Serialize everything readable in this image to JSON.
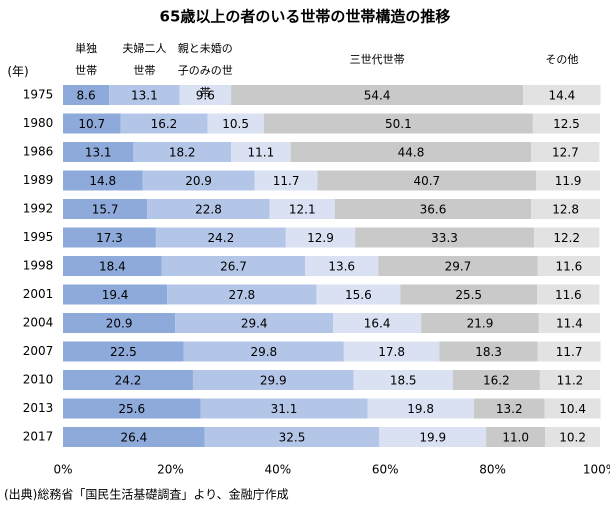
{
  "chart_data": {
    "type": "stacked-bar",
    "title": "65歳以上の者のいる世帯の世帯構造の推移",
    "y_label": "(年)",
    "source": "(出典)総務省「国民生活基礎調査」より、金融庁作成",
    "categories": [
      "1975",
      "1980",
      "1986",
      "1989",
      "1992",
      "1995",
      "1998",
      "2001",
      "2004",
      "2007",
      "2010",
      "2013",
      "2017"
    ],
    "series": [
      {
        "name": "単独世帯",
        "color": "#8eaadb",
        "values": [
          8.6,
          10.7,
          13.1,
          14.8,
          15.7,
          17.3,
          18.4,
          19.4,
          20.9,
          22.5,
          24.2,
          25.6,
          26.4
        ]
      },
      {
        "name": "夫婦二人世帯",
        "color": "#b4c6e7",
        "values": [
          13.1,
          16.2,
          18.2,
          20.9,
          22.8,
          24.2,
          26.7,
          27.8,
          29.4,
          29.8,
          29.9,
          31.1,
          32.5
        ]
      },
      {
        "name": "親と未婚の子のみの世帯",
        "color": "#d9e1f2",
        "values": [
          9.6,
          10.5,
          11.1,
          11.7,
          12.1,
          12.9,
          13.6,
          15.6,
          16.4,
          17.8,
          18.5,
          19.8,
          19.9
        ]
      },
      {
        "name": "三世代世帯",
        "color": "#c9c9c9",
        "values": [
          54.4,
          50.1,
          44.8,
          40.7,
          36.6,
          33.3,
          29.7,
          25.5,
          21.9,
          18.3,
          16.2,
          13.2,
          11.0
        ],
        "value_labels": [
          "54.4",
          "50.1",
          "44.8",
          "40.7",
          "36.6",
          "33.3",
          "29.7",
          "25.5",
          "21.9",
          "18.3",
          "16.2",
          "13.2",
          "11.0"
        ]
      },
      {
        "name": "その他",
        "color": "#e2e2e2",
        "values": [
          14.4,
          12.5,
          12.7,
          11.9,
          12.8,
          12.2,
          11.6,
          11.6,
          11.4,
          11.7,
          11.2,
          10.4,
          10.2
        ]
      }
    ],
    "xlim": [
      0,
      100
    ],
    "xticks": [
      {
        "value": 0,
        "label": "0%"
      },
      {
        "value": 20,
        "label": "20%"
      },
      {
        "value": 40,
        "label": "40%"
      },
      {
        "value": 60,
        "label": "60%"
      },
      {
        "value": 80,
        "label": "80%"
      },
      {
        "value": 100,
        "label": "100%"
      }
    ]
  }
}
